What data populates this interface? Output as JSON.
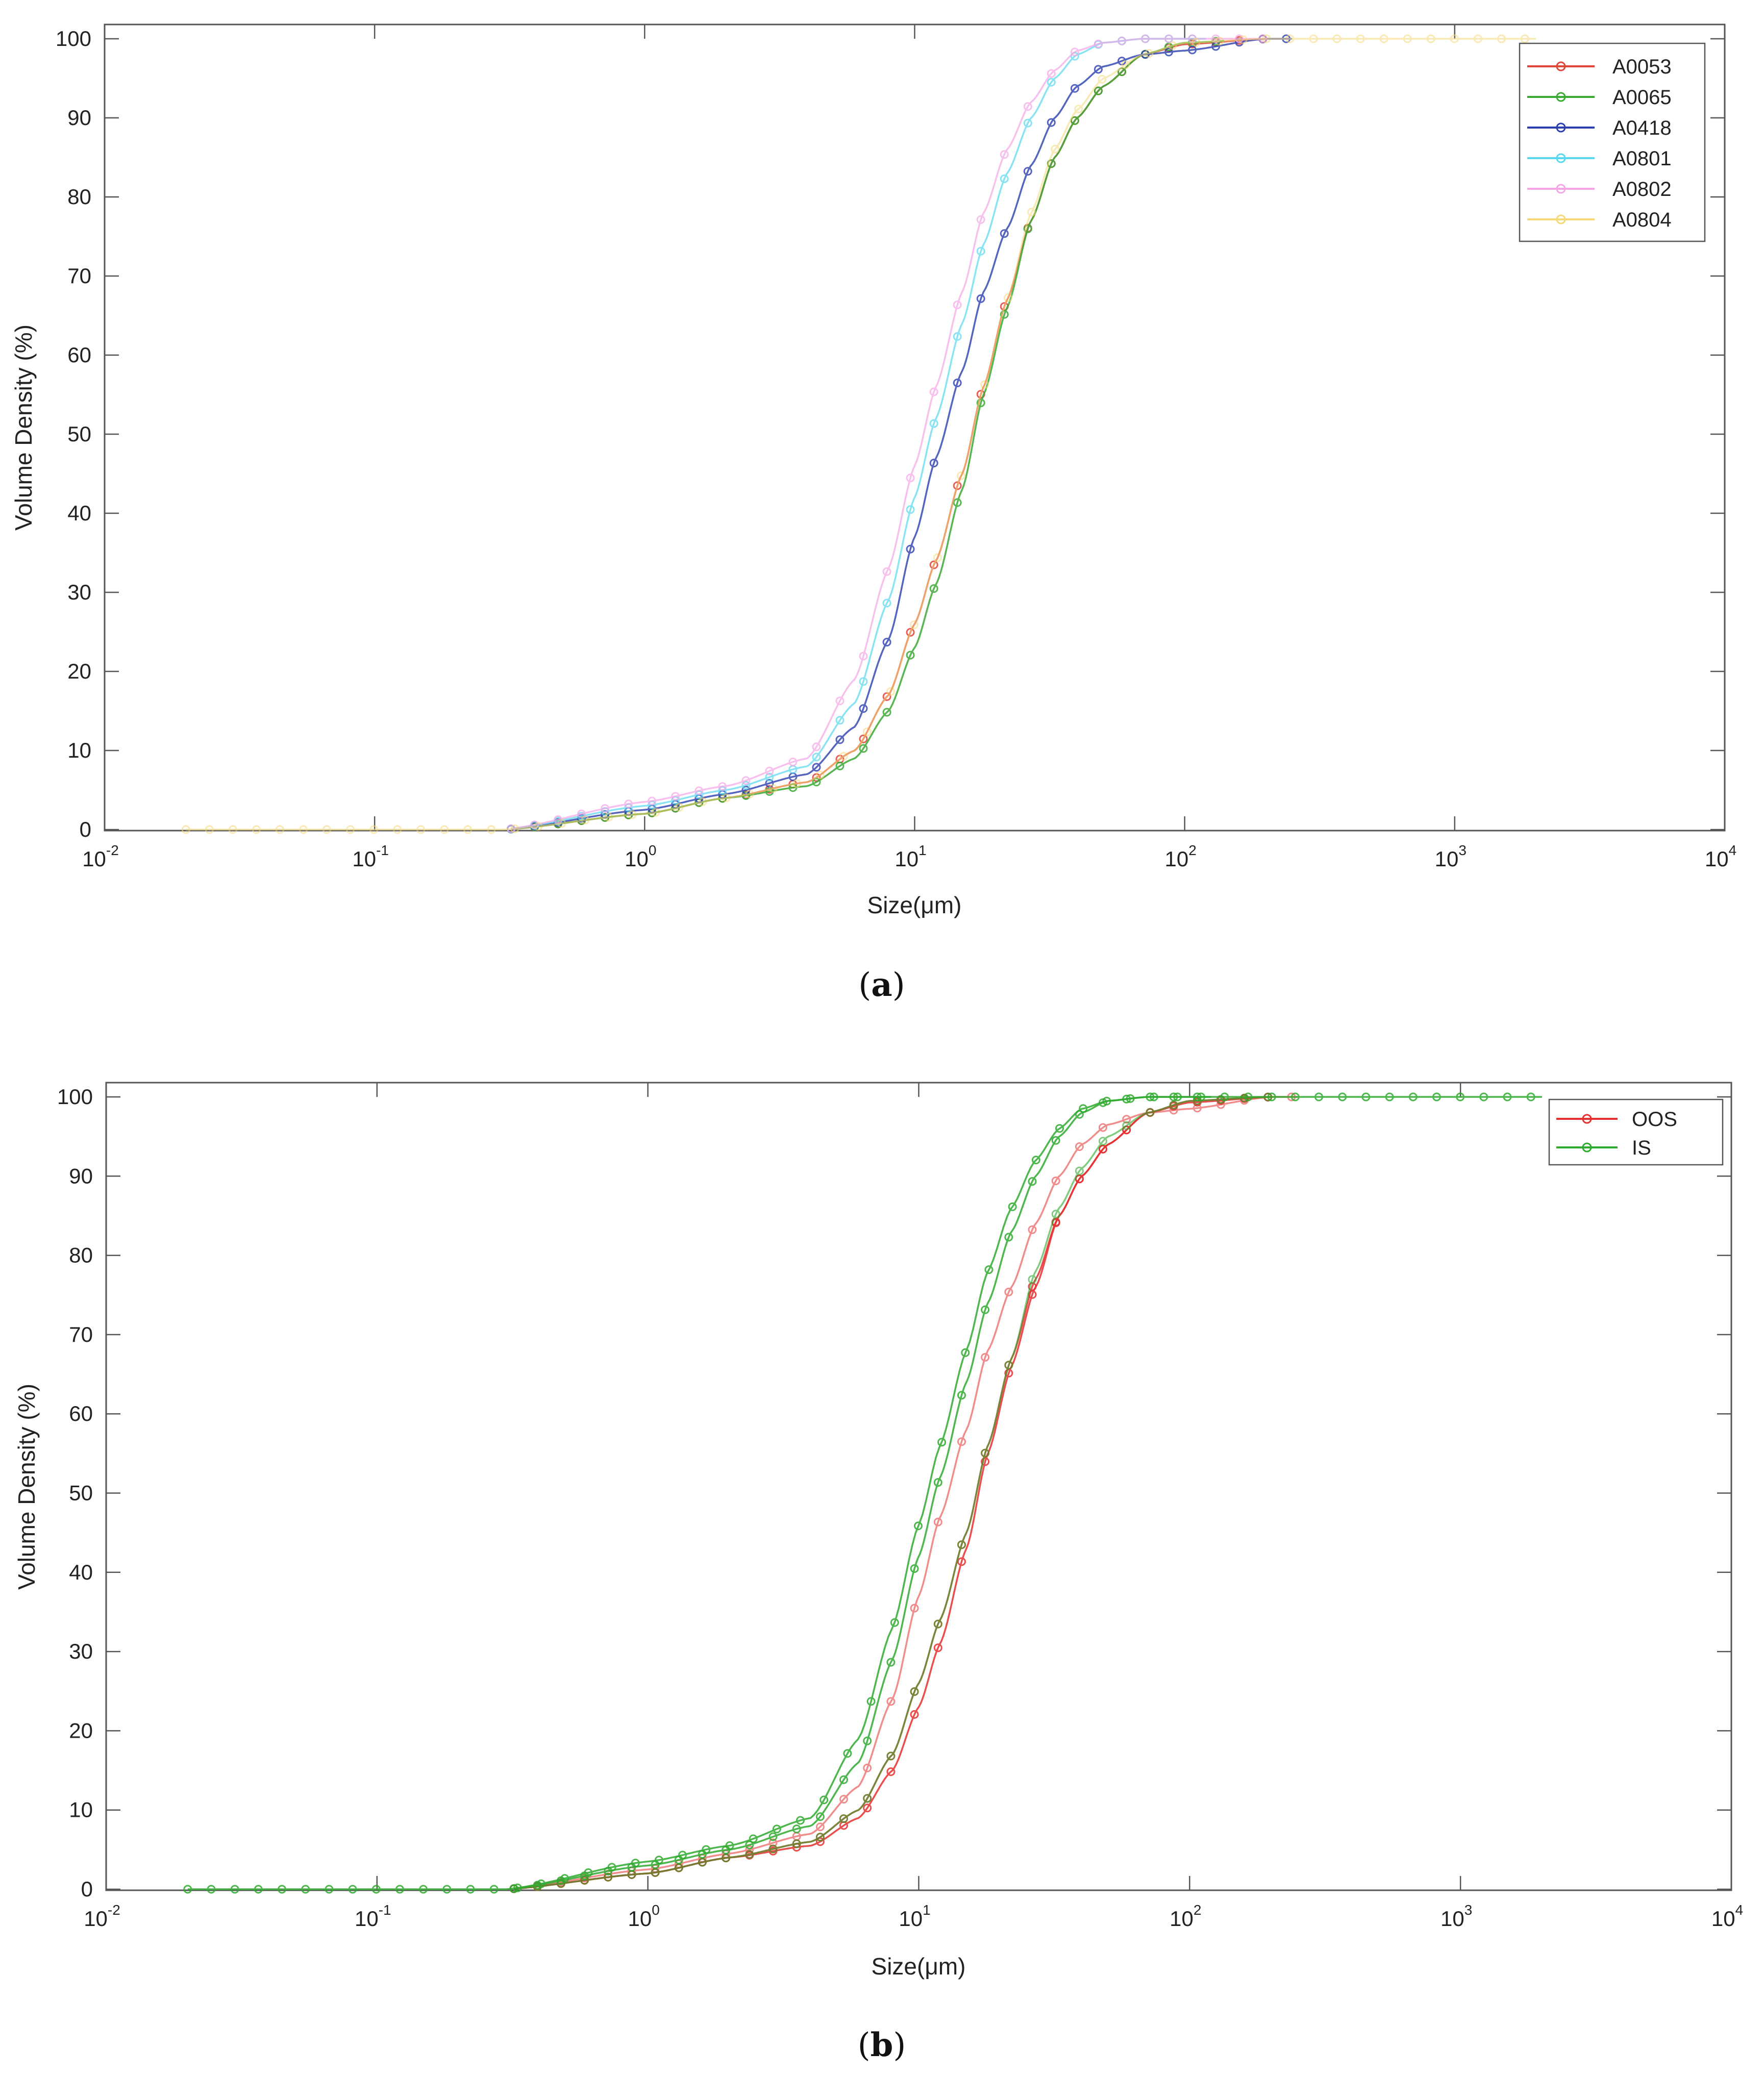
{
  "figure": {
    "panel_a_caption": {
      "open": "(",
      "letter": "a",
      "close": ")"
    },
    "panel_b_caption": {
      "open": "(",
      "letter": "b",
      "close": ")"
    }
  },
  "chart_data": [
    {
      "type": "line",
      "panel": "a",
      "title": "",
      "xlabel": "Size(μm)",
      "ylabel": "Volume Density (%)",
      "xscale": "log",
      "xlim": [
        0.01,
        10000
      ],
      "ylim": [
        0,
        100
      ],
      "x_ticks": [
        {
          "base": "10",
          "exp": "-2"
        },
        {
          "base": "10",
          "exp": "-1"
        },
        {
          "base": "10",
          "exp": "0"
        },
        {
          "base": "10",
          "exp": "1"
        },
        {
          "base": "10",
          "exp": "2"
        },
        {
          "base": "10",
          "exp": "3"
        },
        {
          "base": "10",
          "exp": "4"
        }
      ],
      "y_ticks": [
        "0",
        "10",
        "20",
        "30",
        "40",
        "50",
        "60",
        "70",
        "80",
        "90",
        "100"
      ],
      "legend_position": "top-right",
      "series": [
        {
          "name": "A0053",
          "color": "#e0453a",
          "opacity": 0.85,
          "marker": "circle",
          "x_start": 0.32,
          "x_end": 200,
          "x": [
            0.3,
            1,
            2,
            4,
            6,
            8,
            10,
            12,
            15,
            18,
            22,
            27,
            33,
            40,
            50,
            70,
            100,
            200
          ],
          "y": [
            0,
            2,
            4,
            6,
            10,
            17,
            26,
            34,
            45,
            56,
            67,
            77,
            85,
            90,
            94,
            98,
            99.3,
            100
          ]
        },
        {
          "name": "A0065",
          "color": "#3aaa35",
          "opacity": 0.85,
          "marker": "circle",
          "x_start": 0.32,
          "x_end": 140,
          "x": [
            0.3,
            1,
            2,
            4,
            6,
            8,
            10,
            12,
            15,
            18,
            22,
            27,
            33,
            40,
            50,
            70,
            100,
            200
          ],
          "y": [
            0,
            2,
            4,
            5.5,
            9,
            15,
            23,
            31,
            43,
            55,
            66,
            77,
            85,
            90,
            94,
            98,
            99.5,
            100
          ]
        },
        {
          "name": "A0418",
          "color": "#2b3fb0",
          "opacity": 0.8,
          "marker": "circle",
          "x_start": 0.32,
          "x_end": 250,
          "x": [
            0.3,
            1,
            2,
            4,
            6,
            8,
            10,
            12,
            15,
            18,
            22,
            27,
            33,
            40,
            50,
            70,
            100,
            200
          ],
          "y": [
            0,
            2.5,
            4.5,
            7,
            13,
            24,
            37,
            47,
            58,
            68,
            76,
            84,
            90,
            94,
            96.5,
            98,
            98.5,
            100
          ]
        },
        {
          "name": "A0801",
          "color": "#5ad8ee",
          "opacity": 0.7,
          "marker": "circle",
          "x_start": 0.32,
          "x_end": 120,
          "x": [
            0.3,
            1,
            2,
            4,
            6,
            8,
            10,
            12,
            15,
            18,
            22,
            27,
            33,
            40,
            50,
            70,
            100,
            200
          ],
          "y": [
            0,
            3,
            5,
            8,
            16,
            29,
            42,
            52,
            64,
            74,
            83,
            90,
            95,
            98,
            99.5,
            100,
            100,
            100
          ]
        },
        {
          "name": "A0802",
          "color": "#f4a6e6",
          "opacity": 0.7,
          "marker": "circle",
          "x_start": 0.32,
          "x_end": 200,
          "x": [
            0.3,
            1,
            2,
            4,
            6,
            8,
            10,
            12,
            15,
            18,
            22,
            27,
            33,
            40,
            50,
            70,
            100,
            200
          ],
          "y": [
            0,
            3.5,
            5.5,
            9,
            19,
            33,
            46,
            56,
            68,
            78,
            86,
            92,
            96,
            98.5,
            99.5,
            100,
            100,
            100
          ]
        },
        {
          "name": "A0804",
          "color": "#f5d878",
          "opacity": 0.55,
          "marker": "circle",
          "x_start": 0.02,
          "x_end": 2000,
          "x": [
            0.02,
            0.3,
            1,
            2,
            4,
            6,
            8,
            10,
            12,
            15,
            18,
            22,
            27,
            33,
            40,
            50,
            70,
            100,
            200,
            2000
          ],
          "y": [
            0,
            0,
            2,
            4,
            6,
            10,
            17,
            26,
            34,
            45,
            56,
            67,
            78,
            86,
            91,
            95,
            98,
            99.5,
            100,
            100
          ]
        }
      ]
    },
    {
      "type": "line",
      "panel": "b",
      "title": "",
      "xlabel": "Size(μm)",
      "ylabel": "Volume Density (%)",
      "xscale": "log",
      "xlim": [
        0.01,
        10000
      ],
      "ylim": [
        0,
        100
      ],
      "x_ticks": [
        {
          "base": "10",
          "exp": "-2"
        },
        {
          "base": "10",
          "exp": "-1"
        },
        {
          "base": "10",
          "exp": "0"
        },
        {
          "base": "10",
          "exp": "1"
        },
        {
          "base": "10",
          "exp": "2"
        },
        {
          "base": "10",
          "exp": "3"
        },
        {
          "base": "10",
          "exp": "4"
        }
      ],
      "y_ticks": [
        "0",
        "10",
        "20",
        "30",
        "40",
        "50",
        "60",
        "70",
        "80",
        "90",
        "100"
      ],
      "legend_position": "top-right",
      "legend": [
        {
          "name": "OOS",
          "color": "#e53030"
        },
        {
          "name": "IS",
          "color": "#2eaa2e"
        }
      ],
      "series": [
        {
          "name": "OOS",
          "group": "OOS",
          "color": "#e53030",
          "opacity": 0.85,
          "marker": "circle",
          "x_start": 0.32,
          "x_end": 200,
          "x": [
            0.3,
            1,
            2,
            4,
            6,
            8,
            10,
            12,
            15,
            18,
            22,
            27,
            33,
            40,
            50,
            70,
            100,
            200
          ],
          "y": [
            0,
            2,
            4,
            6,
            10,
            17,
            26,
            34,
            45,
            56,
            67,
            77,
            85,
            90,
            94,
            98,
            99.3,
            100
          ]
        },
        {
          "name": "OOS",
          "group": "OOS",
          "color": "#e53030",
          "opacity": 0.85,
          "marker": "circle",
          "x_start": 0.32,
          "x_end": 200,
          "x": [
            0.3,
            1,
            2,
            4,
            6,
            8,
            10,
            12,
            15,
            18,
            22,
            27,
            33,
            40,
            50,
            70,
            100,
            200
          ],
          "y": [
            0,
            2,
            4,
            5.5,
            9,
            15,
            23,
            31,
            43,
            55,
            66,
            76,
            85,
            90,
            94,
            98,
            99.5,
            100
          ]
        },
        {
          "name": "OOS",
          "group": "OOS",
          "color": "#e53030",
          "opacity": 0.55,
          "marker": "circle",
          "x_start": 0.32,
          "x_end": 250,
          "x": [
            0.3,
            1,
            2,
            4,
            6,
            8,
            10,
            12,
            15,
            18,
            22,
            27,
            33,
            40,
            50,
            70,
            100,
            200
          ],
          "y": [
            0,
            2.5,
            4.5,
            7,
            13,
            24,
            37,
            47,
            58,
            68,
            76,
            84,
            90,
            94,
            96.5,
            98,
            98.5,
            100
          ]
        },
        {
          "name": "IS",
          "group": "IS",
          "color": "#2eaa2e",
          "opacity": 0.85,
          "marker": "circle",
          "x_start": 0.32,
          "x_end": 120,
          "x": [
            0.3,
            1,
            2,
            4,
            6,
            8,
            10,
            12,
            15,
            18,
            22,
            27,
            33,
            40,
            50,
            70,
            100,
            200
          ],
          "y": [
            0,
            3,
            5,
            8,
            16,
            29,
            42,
            52,
            64,
            74,
            83,
            90,
            95,
            98,
            99.5,
            100,
            100,
            100
          ]
        },
        {
          "name": "IS",
          "group": "IS",
          "color": "#2eaa2e",
          "opacity": 0.85,
          "marker": "circle",
          "x_start": 0.02,
          "x_end": 2000,
          "x": [
            0.02,
            0.3,
            1,
            2,
            4,
            6,
            8,
            10,
            12,
            15,
            18,
            22,
            27,
            33,
            40,
            50,
            70,
            100,
            200,
            2000
          ],
          "y": [
            0,
            0,
            3.5,
            5.5,
            9,
            19,
            33,
            46,
            56,
            68,
            78,
            86,
            92,
            96,
            98.5,
            99.5,
            100,
            100,
            100,
            100
          ]
        },
        {
          "name": "IS",
          "group": "IS",
          "color": "#2eaa2e",
          "opacity": 0.6,
          "marker": "circle",
          "x_start": 0.32,
          "x_end": 200,
          "x": [
            0.3,
            1,
            2,
            4,
            6,
            8,
            10,
            12,
            15,
            18,
            22,
            27,
            33,
            40,
            50,
            70,
            100,
            200
          ],
          "y": [
            0,
            2,
            4,
            6,
            10,
            17,
            26,
            34,
            45,
            56,
            67,
            78,
            86,
            91,
            95,
            98,
            99.5,
            100
          ]
        }
      ]
    }
  ]
}
